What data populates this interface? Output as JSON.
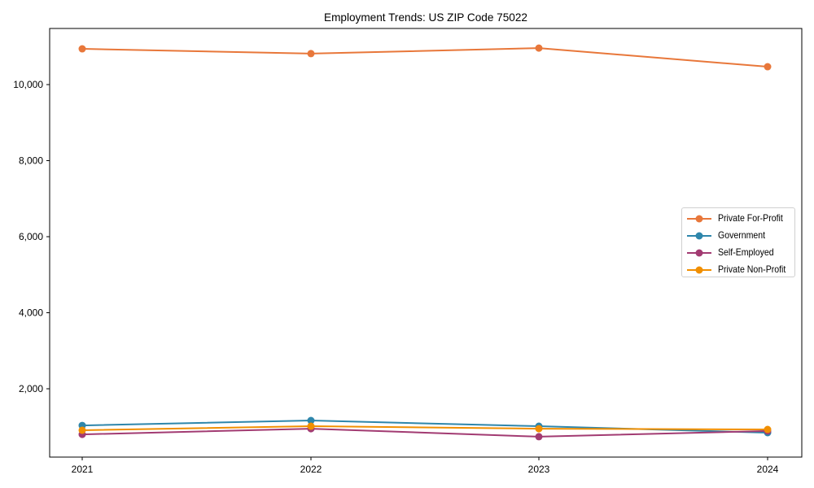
{
  "chart_data": {
    "type": "line",
    "title": "Employment Trends: US ZIP Code 75022",
    "xlabel": "",
    "ylabel": "",
    "categories": [
      "2021",
      "2022",
      "2023",
      "2024"
    ],
    "yticks": [
      2000,
      4000,
      6000,
      8000,
      10000
    ],
    "ytick_labels": [
      "2,000",
      "4,000",
      "6,000",
      "8,000",
      "10,000"
    ],
    "ylim": [
      540,
      11360
    ],
    "grid": false,
    "legend_position": "center right",
    "series": [
      {
        "name": "Private For-Profit",
        "color": "#e8773a",
        "values": [
          10940,
          10815,
          10960,
          10470
        ]
      },
      {
        "name": "Government",
        "color": "#2e86ab",
        "values": [
          1035,
          1165,
          1015,
          845
        ]
      },
      {
        "name": "Self-Employed",
        "color": "#a23b72",
        "values": [
          800,
          950,
          740,
          890
        ]
      },
      {
        "name": "Private Non-Profit",
        "color": "#f18f01",
        "values": [
          910,
          1015,
          950,
          930
        ]
      }
    ]
  }
}
